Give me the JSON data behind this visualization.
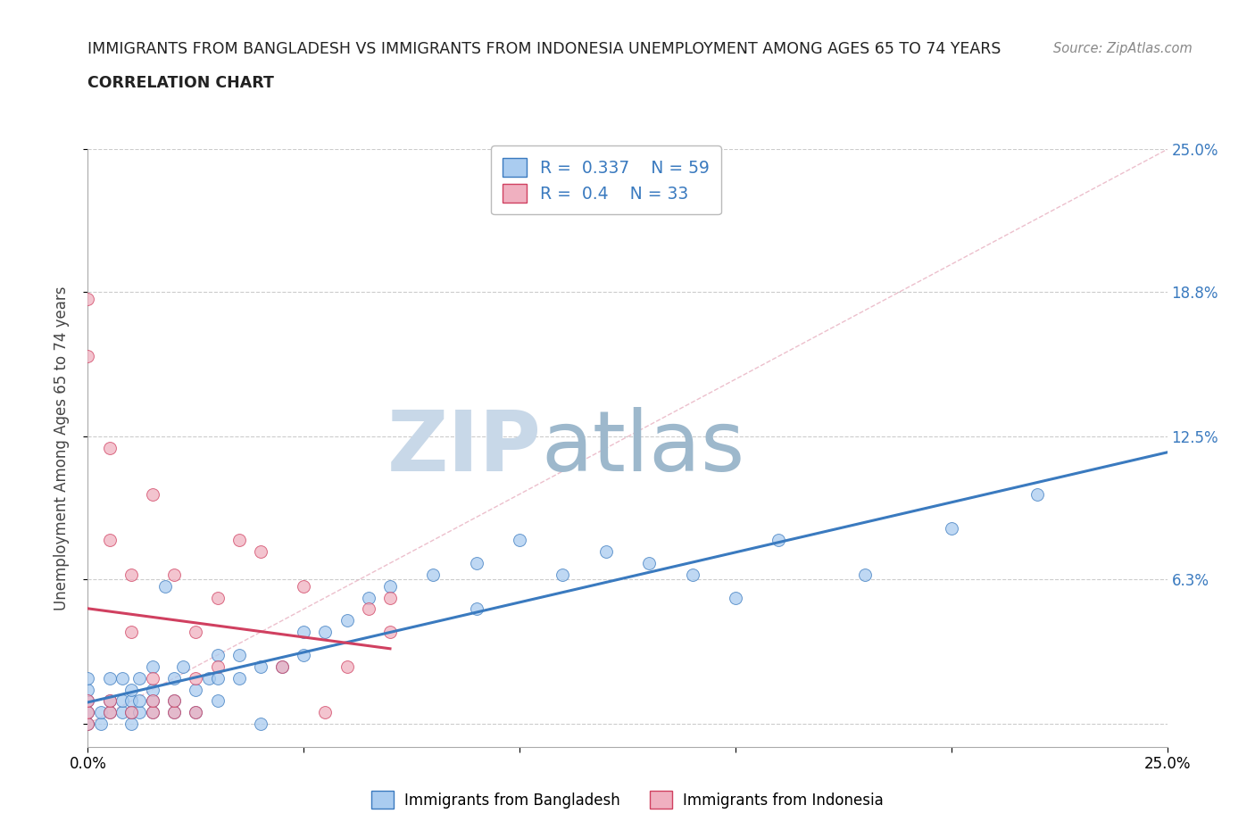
{
  "title_line1": "IMMIGRANTS FROM BANGLADESH VS IMMIGRANTS FROM INDONESIA UNEMPLOYMENT AMONG AGES 65 TO 74 YEARS",
  "title_line2": "CORRELATION CHART",
  "source": "Source: ZipAtlas.com",
  "ylabel": "Unemployment Among Ages 65 to 74 years",
  "xlim": [
    0,
    0.25
  ],
  "ylim": [
    -0.01,
    0.25
  ],
  "ytick_positions": [
    0.0,
    0.063,
    0.125,
    0.188,
    0.25
  ],
  "ytick_labels": [
    "",
    "6.3%",
    "12.5%",
    "18.8%",
    "25.0%"
  ],
  "R_bangladesh": 0.337,
  "N_bangladesh": 59,
  "R_indonesia": 0.4,
  "N_indonesia": 33,
  "color_bangladesh": "#aaccf0",
  "color_indonesia": "#f0b0c0",
  "line_color_bangladesh": "#3a7abf",
  "line_color_indonesia": "#d04060",
  "diagonal_color": "#ddbbcc",
  "watermark_zip": "ZIP",
  "watermark_atlas": "atlas",
  "watermark_color_zip": "#c8d8e8",
  "watermark_color_atlas": "#9db8cc",
  "legend_label_bangladesh": "Immigrants from Bangladesh",
  "legend_label_indonesia": "Immigrants from Indonesia",
  "bangladesh_x": [
    0.0,
    0.0,
    0.0,
    0.0,
    0.0,
    0.003,
    0.003,
    0.005,
    0.005,
    0.005,
    0.008,
    0.008,
    0.008,
    0.01,
    0.01,
    0.01,
    0.01,
    0.012,
    0.012,
    0.012,
    0.015,
    0.015,
    0.015,
    0.015,
    0.018,
    0.02,
    0.02,
    0.02,
    0.022,
    0.025,
    0.025,
    0.028,
    0.03,
    0.03,
    0.03,
    0.035,
    0.035,
    0.04,
    0.04,
    0.045,
    0.05,
    0.05,
    0.055,
    0.06,
    0.065,
    0.07,
    0.08,
    0.09,
    0.09,
    0.1,
    0.11,
    0.12,
    0.13,
    0.14,
    0.15,
    0.16,
    0.18,
    0.2,
    0.22
  ],
  "bangladesh_y": [
    0.0,
    0.005,
    0.01,
    0.015,
    0.02,
    0.0,
    0.005,
    0.005,
    0.01,
    0.02,
    0.005,
    0.01,
    0.02,
    0.0,
    0.005,
    0.01,
    0.015,
    0.005,
    0.01,
    0.02,
    0.005,
    0.01,
    0.015,
    0.025,
    0.06,
    0.005,
    0.01,
    0.02,
    0.025,
    0.005,
    0.015,
    0.02,
    0.01,
    0.02,
    0.03,
    0.02,
    0.03,
    0.0,
    0.025,
    0.025,
    0.03,
    0.04,
    0.04,
    0.045,
    0.055,
    0.06,
    0.065,
    0.05,
    0.07,
    0.08,
    0.065,
    0.075,
    0.07,
    0.065,
    0.055,
    0.08,
    0.065,
    0.085,
    0.1
  ],
  "indonesia_x": [
    0.0,
    0.0,
    0.0,
    0.0,
    0.0,
    0.005,
    0.005,
    0.005,
    0.005,
    0.01,
    0.01,
    0.01,
    0.015,
    0.015,
    0.015,
    0.015,
    0.02,
    0.02,
    0.02,
    0.025,
    0.025,
    0.025,
    0.03,
    0.03,
    0.035,
    0.04,
    0.045,
    0.05,
    0.055,
    0.06,
    0.065,
    0.07,
    0.07
  ],
  "indonesia_y": [
    0.0,
    0.005,
    0.01,
    0.16,
    0.185,
    0.005,
    0.01,
    0.08,
    0.12,
    0.005,
    0.04,
    0.065,
    0.005,
    0.01,
    0.02,
    0.1,
    0.005,
    0.01,
    0.065,
    0.005,
    0.02,
    0.04,
    0.025,
    0.055,
    0.08,
    0.075,
    0.025,
    0.06,
    0.005,
    0.025,
    0.05,
    0.04,
    0.055
  ]
}
